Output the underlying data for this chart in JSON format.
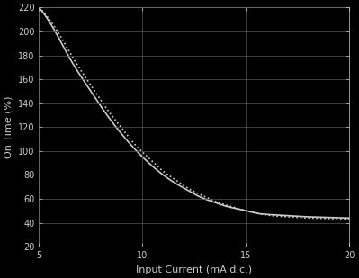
{
  "x_min": 5,
  "x_max": 20,
  "y_min": 20,
  "y_max": 220,
  "x_ticks": [
    5,
    10,
    15,
    20
  ],
  "y_ticks": [
    20,
    40,
    60,
    80,
    100,
    120,
    140,
    160,
    180,
    200,
    220
  ],
  "xlabel": "Input Current (mA d.c.)",
  "ylabel": "On Time (%)",
  "background_color": "#000000",
  "axes_color": "#111111",
  "grid_color": "#555555",
  "text_color": "#cccccc",
  "line_color": "#cccccc",
  "curve1_style": "-",
  "curve2_style": ":",
  "curve_linewidth": 1.2,
  "figsize": [
    3.99,
    3.09
  ],
  "dpi": 100,
  "curve1_x": [
    5,
    5.5,
    6,
    6.5,
    7,
    7.5,
    8,
    8.5,
    9,
    9.5,
    10,
    10.5,
    11,
    11.5,
    12,
    12.5,
    13,
    13.5,
    14,
    14.5,
    15,
    15.5,
    16,
    16.5,
    17,
    17.5,
    18,
    18.5,
    19,
    19.5,
    20
  ],
  "curve1_y": [
    220,
    208,
    193,
    177,
    163,
    150,
    137,
    125,
    114,
    104,
    95,
    87,
    80,
    74,
    69,
    64,
    60,
    57,
    54,
    52,
    50,
    48,
    47,
    46.5,
    46,
    45.5,
    45,
    44.8,
    44.5,
    44.2,
    44
  ],
  "curve2_x": [
    5,
    5.5,
    6,
    6.5,
    7,
    7.5,
    8,
    8.5,
    9,
    9.5,
    10,
    10.5,
    11,
    11.5,
    12,
    12.5,
    13,
    13.5,
    14,
    14.5,
    15,
    15.5,
    16,
    16.5,
    17,
    17.5,
    18,
    18.5,
    19,
    19.5,
    20
  ],
  "curve2_y": [
    220,
    210,
    197,
    182,
    168,
    155,
    142,
    130,
    119,
    108,
    99,
    91,
    83,
    77,
    71,
    66,
    62,
    58,
    55,
    52.5,
    50,
    48,
    46.5,
    45.5,
    45,
    44.5,
    44,
    43.8,
    43.5,
    43.2,
    43
  ]
}
